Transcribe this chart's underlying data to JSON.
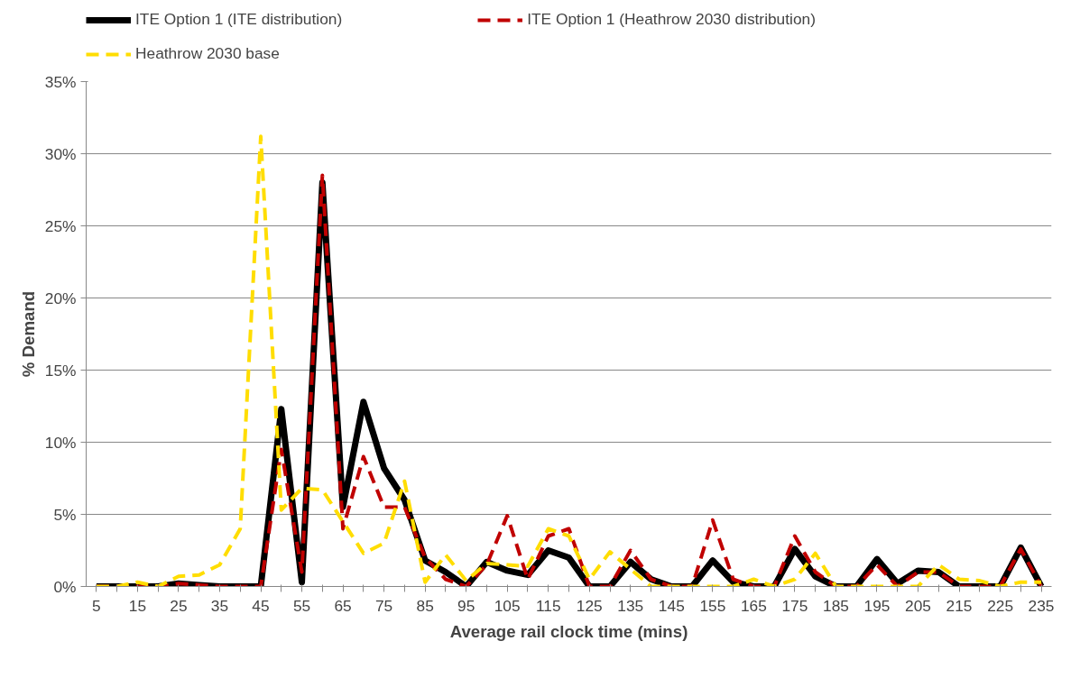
{
  "chart_data": {
    "type": "line",
    "xlabel": "Average rail clock time (mins)",
    "ylabel": "% Demand",
    "categories": [
      "5",
      null,
      "15",
      null,
      "25",
      null,
      "35",
      null,
      "45",
      null,
      "55",
      null,
      "65",
      null,
      "75",
      null,
      "85",
      null,
      "95",
      null,
      "105",
      null,
      "115",
      null,
      "125",
      null,
      "135",
      null,
      "145",
      null,
      "155",
      null,
      "165",
      null,
      "175",
      null,
      "185",
      null,
      "195",
      null,
      "205",
      null,
      "215",
      null,
      "225",
      null,
      "235"
    ],
    "ylim": [
      0,
      35
    ],
    "yticks": [
      {
        "value": 0,
        "label": "0%"
      },
      {
        "value": 5,
        "label": "5%"
      },
      {
        "value": 10,
        "label": "10%"
      },
      {
        "value": 15,
        "label": "15%"
      },
      {
        "value": 20,
        "label": "20%"
      },
      {
        "value": 25,
        "label": "25%"
      },
      {
        "value": 30,
        "label": "30%"
      },
      {
        "value": 35,
        "label": "35%"
      }
    ],
    "grid": "y",
    "legend": "top",
    "marker": "none",
    "series": [
      {
        "name": "ITE Option 1 (ITE distribution)",
        "color": "#000000",
        "line_style": "solid",
        "values": [
          0,
          0,
          0,
          0,
          0.2,
          0.1,
          0,
          0,
          0,
          12.3,
          0.3,
          28,
          5.5,
          12.8,
          8.2,
          6,
          1.8,
          1,
          0,
          1.7,
          1.1,
          0.8,
          2.5,
          2,
          0,
          0,
          1.7,
          0.5,
          0,
          0,
          1.8,
          0.3,
          0,
          0,
          2.6,
          0.7,
          0,
          0,
          1.9,
          0.2,
          1.1,
          1,
          0,
          0,
          0,
          2.7,
          0
        ]
      },
      {
        "name": "ITE Option 1 (Heathrow 2030 distribution)",
        "color": "#c00000",
        "line_style": "dashed",
        "values": [
          0,
          0,
          0,
          0,
          0.2,
          0.1,
          0,
          0,
          0,
          9.5,
          1,
          28.5,
          4,
          9,
          5.5,
          5.5,
          2,
          0.5,
          0,
          1.5,
          4.9,
          0.5,
          3.5,
          4,
          0,
          0,
          2.5,
          0.5,
          0,
          0,
          4.6,
          0.5,
          0,
          0,
          3.5,
          1,
          0,
          0,
          1.5,
          0,
          1,
          1,
          0,
          0,
          0,
          2.6,
          0
        ]
      },
      {
        "name": "Heathrow 2030 base",
        "color": "#ffdd00",
        "line_style": "dashed",
        "values": [
          0,
          0,
          0.3,
          0,
          0.7,
          0.8,
          1.5,
          4,
          31.2,
          5.3,
          6.8,
          6.7,
          4.5,
          2.3,
          3,
          7.3,
          0.3,
          2.2,
          0.4,
          1.6,
          1.5,
          1.4,
          4,
          3.5,
          0.5,
          2.4,
          1.2,
          0,
          0,
          0,
          0,
          0,
          0.5,
          0,
          0.5,
          2.3,
          0,
          0,
          0,
          0,
          0,
          1.5,
          0.5,
          0.4,
          0,
          0.3,
          0.3
        ]
      }
    ]
  }
}
